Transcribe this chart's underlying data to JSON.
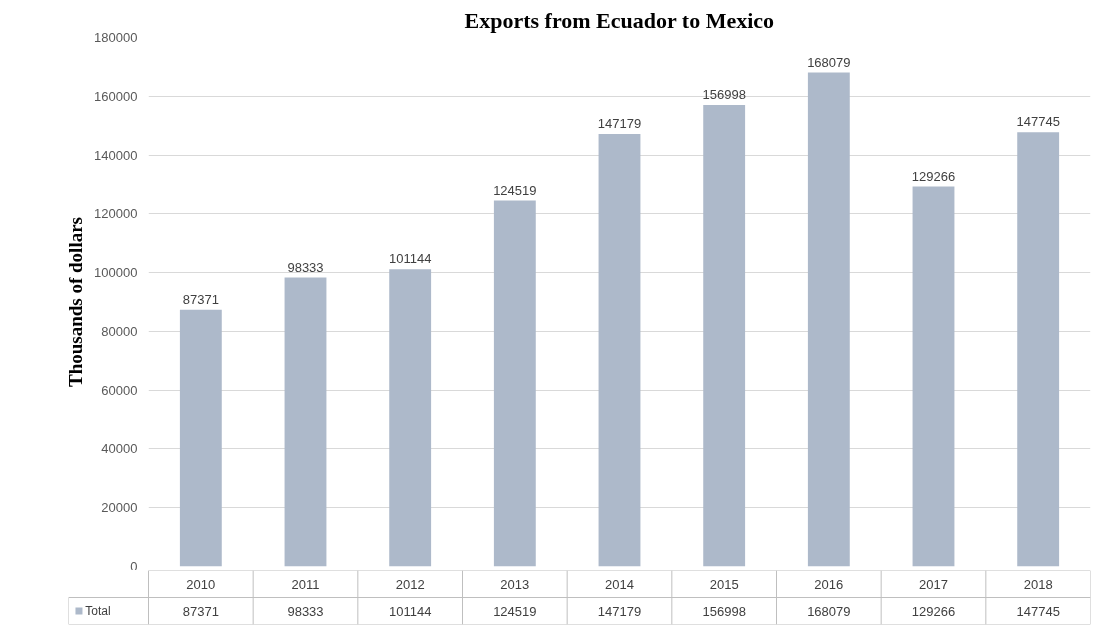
{
  "chart_data": {
    "type": "bar",
    "title": "Exports from Ecuador to Mexico",
    "ylabel": "Thousands of dollars",
    "categories": [
      "2010",
      "2011",
      "2012",
      "2013",
      "2014",
      "2015",
      "2016",
      "2017",
      "2018"
    ],
    "series": [
      {
        "name": "Total",
        "color": "#adb9ca",
        "values": [
          87371,
          98333,
          101144,
          124519,
          147179,
          156998,
          168079,
          129266,
          147745
        ]
      }
    ],
    "annotations": [
      "87371",
      "98333",
      "101144",
      "124519",
      "147179",
      "156998",
      "168079",
      "129266",
      "147745"
    ],
    "ylim": [
      0,
      180000
    ],
    "yticks": [
      0,
      20000,
      40000,
      60000,
      80000,
      100000,
      120000,
      140000,
      160000,
      180000
    ],
    "grid": "y",
    "data_labels": true,
    "legend": "bottom"
  }
}
